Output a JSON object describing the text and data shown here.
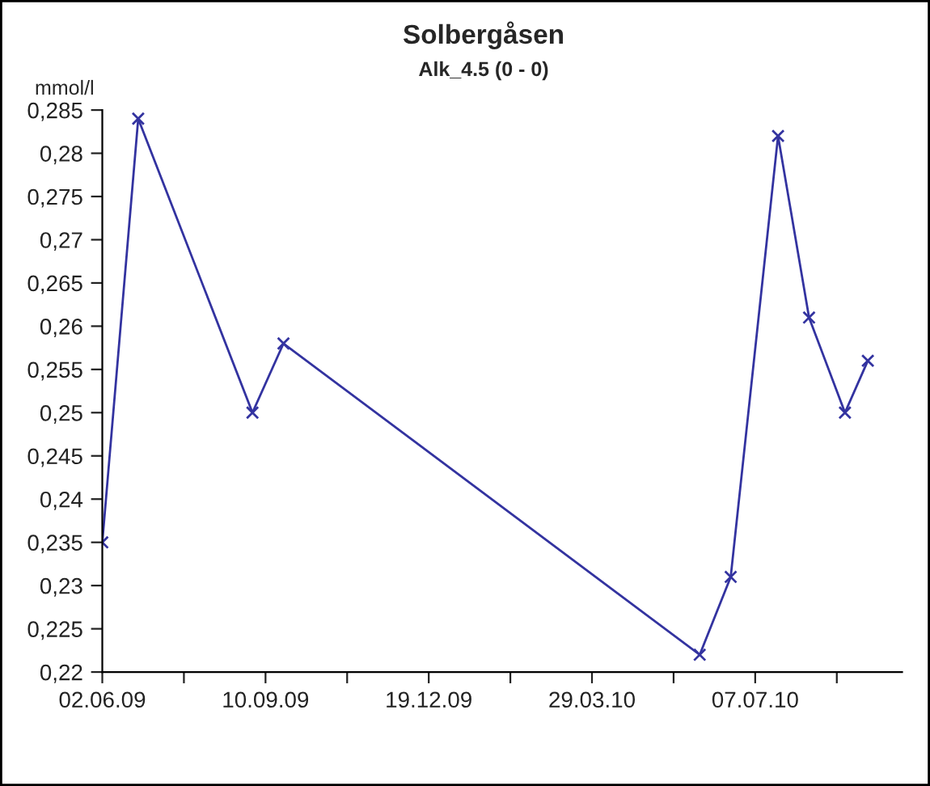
{
  "chart_data": {
    "type": "line",
    "title": "Solbergåsen",
    "subtitle": "Alk_4.5 (0 - 0)",
    "ylabel": "mmol/l",
    "x": [
      "2009-06-02",
      "2009-06-24",
      "2009-09-02",
      "2009-09-21",
      "2010-06-03",
      "2010-06-22",
      "2010-07-21",
      "2010-08-09",
      "2010-08-31",
      "2010-09-14"
    ],
    "series": [
      {
        "color": "#3333a0",
        "values": [
          0.235,
          0.284,
          0.25,
          0.258,
          0.222,
          0.231,
          0.282,
          0.261,
          0.25,
          0.256
        ]
      }
    ],
    "xlim": [
      "2009-06-02",
      "2010-10-05"
    ],
    "xticks": [
      {
        "value": "2009-06-02",
        "label": "02.06.09"
      },
      {
        "value": "2009-07-22",
        "label": null
      },
      {
        "value": "2009-09-10",
        "label": "10.09.09"
      },
      {
        "value": "2009-10-30",
        "label": null
      },
      {
        "value": "2009-12-19",
        "label": "19.12.09"
      },
      {
        "value": "2010-02-07",
        "label": null
      },
      {
        "value": "2010-03-29",
        "label": "29.03.10"
      },
      {
        "value": "2010-05-18",
        "label": null
      },
      {
        "value": "2010-07-07",
        "label": "07.07.10"
      },
      {
        "value": "2010-08-26",
        "label": null
      }
    ],
    "ylim": [
      0.22,
      0.285
    ],
    "yticks": [
      {
        "value": 0.22,
        "label": "0,22"
      },
      {
        "value": 0.225,
        "label": "0,225"
      },
      {
        "value": 0.23,
        "label": "0,23"
      },
      {
        "value": 0.235,
        "label": "0,235"
      },
      {
        "value": 0.24,
        "label": "0,24"
      },
      {
        "value": 0.245,
        "label": "0,245"
      },
      {
        "value": 0.25,
        "label": "0,25"
      },
      {
        "value": 0.255,
        "label": "0,255"
      },
      {
        "value": 0.26,
        "label": "0,26"
      },
      {
        "value": 0.265,
        "label": "0,265"
      },
      {
        "value": 0.27,
        "label": "0,27"
      },
      {
        "value": 0.275,
        "label": "0,275"
      },
      {
        "value": 0.28,
        "label": "0,28"
      },
      {
        "value": 0.285,
        "label": "0,285"
      }
    ],
    "marker": "cross",
    "line_style": "solid",
    "grid": false,
    "legend": false
  }
}
